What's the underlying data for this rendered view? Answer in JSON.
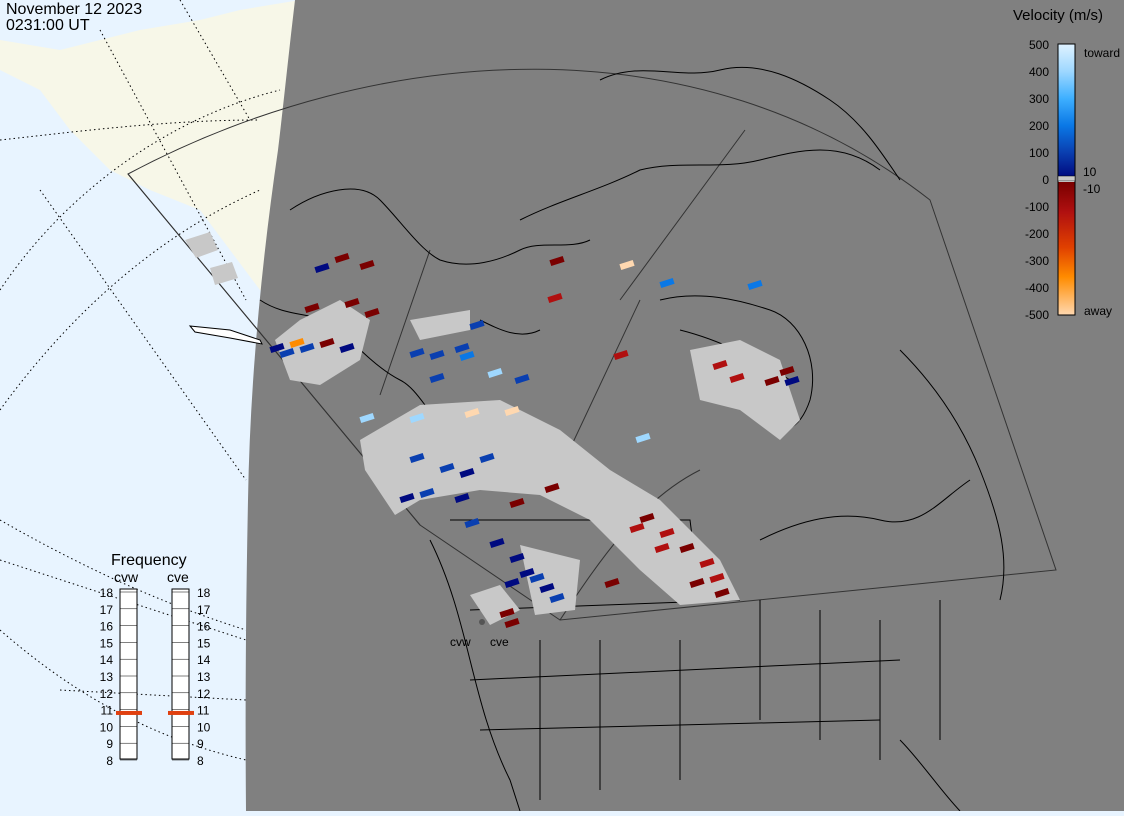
{
  "header": {
    "date": "November 12 2023",
    "time": "0231:00 UT"
  },
  "colorbar": {
    "title": "Velocity (m/s)",
    "ticks": [
      "500",
      "400",
      "300",
      "200",
      "100",
      "0",
      "-100",
      "-200",
      "-300",
      "-400",
      "-500"
    ],
    "inner_pos": "10",
    "inner_neg": "-10",
    "toward_label": "toward",
    "away_label": "away",
    "gradient_colors": [
      "#dff2ff",
      "#9fd8ff",
      "#3fb0ff",
      "#0a78e6",
      "#0a3fb0",
      "#000a80",
      "#7a0000",
      "#b01010",
      "#e04000",
      "#ff8c00",
      "#ffd8b0"
    ]
  },
  "frequency_panel": {
    "title": "Frequency",
    "radars": [
      "cvw",
      "cve"
    ],
    "scale": [
      "18",
      "17",
      "16",
      "15",
      "14",
      "13",
      "12",
      "11",
      "10",
      "9",
      "8"
    ],
    "cvw_mhz": 10.8,
    "cve_mhz": 10.8,
    "marker_color": "#e04010"
  },
  "map": {
    "radar_labels": [
      "cvw",
      "cve"
    ],
    "land_color": "#808080",
    "background_land_color": "#f7f7e8",
    "ocean_color": "#e8f4ff",
    "ground_scatter_color": "#c8c8c8"
  }
}
